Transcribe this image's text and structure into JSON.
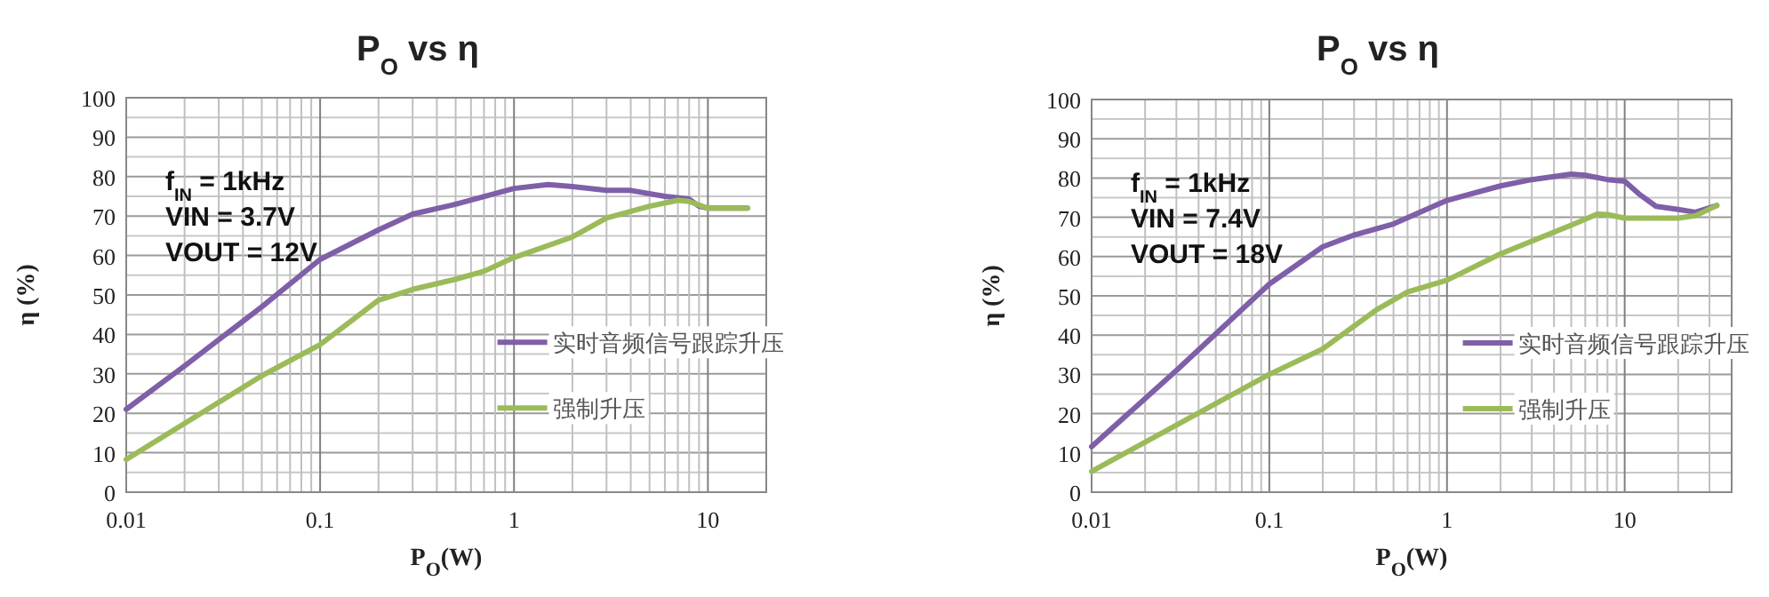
{
  "chart_data": [
    {
      "type": "line",
      "title": "P$_{O}$ vs η",
      "xlabel": "P$_{O}$(W)",
      "ylabel": "η (%)",
      "log": "x",
      "grid": true,
      "legend": "right",
      "marker": "none",
      "line_style": "solid",
      "xlim": [
        0.01,
        20
      ],
      "ylim": [
        0,
        100
      ],
      "xticks": [
        0.01,
        {
          "value": 0.02,
          "label": null
        },
        {
          "value": 0.03,
          "label": null
        },
        {
          "value": 0.04,
          "label": null
        },
        {
          "value": 0.05,
          "label": null
        },
        {
          "value": 0.06,
          "label": null
        },
        {
          "value": 0.07,
          "label": null
        },
        {
          "value": 0.08,
          "label": null
        },
        {
          "value": 0.09,
          "label": null
        },
        0.1,
        {
          "value": 0.2,
          "label": null
        },
        {
          "value": 0.3,
          "label": null
        },
        {
          "value": 0.4,
          "label": null
        },
        {
          "value": 0.5,
          "label": null
        },
        {
          "value": 0.6,
          "label": null
        },
        {
          "value": 0.7,
          "label": null
        },
        {
          "value": 0.8,
          "label": null
        },
        {
          "value": 0.9,
          "label": null
        },
        1,
        {
          "value": 2,
          "label": null
        },
        {
          "value": 3,
          "label": null
        },
        {
          "value": 4,
          "label": null
        },
        {
          "value": 5,
          "label": null
        },
        {
          "value": 6,
          "label": null
        },
        {
          "value": 7,
          "label": null
        },
        {
          "value": 8,
          "label": null
        },
        {
          "value": 9,
          "label": null
        },
        10
      ],
      "yticks": [
        0,
        {
          "value": 5,
          "label": null
        },
        10,
        {
          "value": 15,
          "label": null
        },
        20,
        {
          "value": 25,
          "label": null
        },
        30,
        {
          "value": 35,
          "label": null
        },
        40,
        {
          "value": 45,
          "label": null
        },
        50,
        {
          "value": 55,
          "label": null
        },
        60,
        {
          "value": 65,
          "label": null
        },
        70,
        {
          "value": 75,
          "label": null
        },
        80,
        {
          "value": 85,
          "label": null
        },
        90,
        {
          "value": 95,
          "label": null
        },
        100
      ],
      "annotations": [
        "f$_{IN}$ = 1kHz",
        "VIN = 3.7V",
        "VOUT = 12V"
      ],
      "series": [
        {
          "name": "实时音频信号跟踪升压",
          "color": "#7f5fa8",
          "x": [
            0.01,
            0.02,
            0.05,
            0.1,
            0.2,
            0.3,
            0.5,
            1,
            1.5,
            2,
            3,
            4,
            6,
            8,
            9,
            10,
            16
          ],
          "values": [
            21,
            32,
            47,
            59,
            66.5,
            70.5,
            73,
            77,
            78,
            77.5,
            76.5,
            76.5,
            75,
            74.3,
            72.5,
            72,
            72
          ]
        },
        {
          "name": "强制升压",
          "color": "#9bbb59",
          "x": [
            0.01,
            0.05,
            0.1,
            0.2,
            0.3,
            0.5,
            0.7,
            1,
            2,
            3,
            5,
            7,
            8,
            10,
            16
          ],
          "values": [
            8.3,
            29.5,
            37.4,
            48.7,
            51.4,
            54,
            56,
            59.5,
            64.7,
            69.5,
            72.5,
            74,
            73.7,
            72,
            72
          ]
        }
      ]
    },
    {
      "type": "line",
      "title": "P$_{O}$ vs η",
      "xlabel": "P$_{O}$(W)",
      "ylabel": "η (%)",
      "log": "x",
      "grid": true,
      "legend": "right",
      "marker": "none",
      "line_style": "solid",
      "xlim": [
        0.01,
        40
      ],
      "ylim": [
        0,
        100
      ],
      "xticks": [
        0.01,
        {
          "value": 0.02,
          "label": null
        },
        {
          "value": 0.03,
          "label": null
        },
        {
          "value": 0.04,
          "label": null
        },
        {
          "value": 0.05,
          "label": null
        },
        {
          "value": 0.06,
          "label": null
        },
        {
          "value": 0.07,
          "label": null
        },
        {
          "value": 0.08,
          "label": null
        },
        {
          "value": 0.09,
          "label": null
        },
        0.1,
        {
          "value": 0.2,
          "label": null
        },
        {
          "value": 0.3,
          "label": null
        },
        {
          "value": 0.4,
          "label": null
        },
        {
          "value": 0.5,
          "label": null
        },
        {
          "value": 0.6,
          "label": null
        },
        {
          "value": 0.7,
          "label": null
        },
        {
          "value": 0.8,
          "label": null
        },
        {
          "value": 0.9,
          "label": null
        },
        1,
        {
          "value": 2,
          "label": null
        },
        {
          "value": 3,
          "label": null
        },
        {
          "value": 4,
          "label": null
        },
        {
          "value": 5,
          "label": null
        },
        {
          "value": 6,
          "label": null
        },
        {
          "value": 7,
          "label": null
        },
        {
          "value": 8,
          "label": null
        },
        {
          "value": 9,
          "label": null
        },
        10,
        {
          "value": 20,
          "label": null
        },
        {
          "value": 30,
          "label": null
        }
      ],
      "yticks": [
        0,
        {
          "value": 5,
          "label": null
        },
        10,
        {
          "value": 15,
          "label": null
        },
        20,
        {
          "value": 25,
          "label": null
        },
        30,
        {
          "value": 35,
          "label": null
        },
        40,
        {
          "value": 45,
          "label": null
        },
        50,
        {
          "value": 55,
          "label": null
        },
        60,
        {
          "value": 65,
          "label": null
        },
        70,
        {
          "value": 75,
          "label": null
        },
        80,
        {
          "value": 85,
          "label": null
        },
        90,
        {
          "value": 95,
          "label": null
        },
        100
      ],
      "annotations": [
        "f$_{IN}$ = 1kHz",
        "VIN = 7.4V",
        "VOUT = 18V"
      ],
      "series": [
        {
          "name": "实时音频信号跟踪升压",
          "color": "#7f5fa8",
          "x": [
            0.01,
            0.03,
            0.1,
            0.2,
            0.3,
            0.5,
            1,
            2,
            3,
            5,
            6,
            8,
            10,
            12,
            15,
            20,
            25,
            33
          ],
          "values": [
            11.6,
            31,
            53,
            62.5,
            65.5,
            68.3,
            74.3,
            78,
            79.6,
            81,
            80.7,
            79.6,
            79.2,
            76,
            72.8,
            72,
            71.3,
            73
          ]
        },
        {
          "name": "强制升压",
          "color": "#9bbb59",
          "x": [
            0.01,
            0.1,
            0.2,
            0.4,
            0.6,
            1,
            2,
            5,
            7,
            8,
            10,
            20,
            25,
            33
          ],
          "values": [
            5.3,
            30,
            36.5,
            46.4,
            51,
            54,
            60.7,
            68,
            70.8,
            70.7,
            69.8,
            69.8,
            70.4,
            73
          ]
        }
      ]
    }
  ]
}
